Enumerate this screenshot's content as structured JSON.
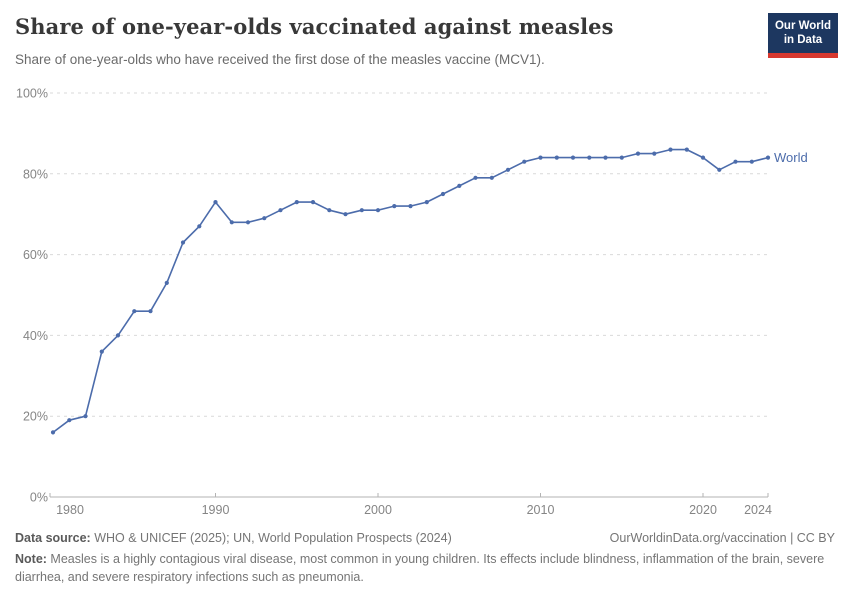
{
  "header": {
    "title": "Share of one-year-olds vaccinated against measles",
    "subtitle": "Share of one-year-olds who have received the first dose of the measles vaccine (MCV1).",
    "logo": {
      "line1": "Our World",
      "line2": "in Data"
    }
  },
  "chart_data": {
    "type": "line",
    "title": "Share of one-year-olds vaccinated against measles",
    "xlabel": "",
    "ylabel": "",
    "xlim": [
      1980,
      2024
    ],
    "ylim": [
      0,
      100
    ],
    "grid": "horizontal-dashed",
    "legend_position": "end-of-line-label",
    "x_ticks": [
      1980,
      1990,
      2000,
      2010,
      2020,
      2024
    ],
    "y_ticks": [
      {
        "value": 0,
        "label": "0%"
      },
      {
        "value": 20,
        "label": "20%"
      },
      {
        "value": 40,
        "label": "40%"
      },
      {
        "value": 60,
        "label": "60%"
      },
      {
        "value": 80,
        "label": "80%"
      },
      {
        "value": 100,
        "label": "100%"
      }
    ],
    "series": [
      {
        "name": "World",
        "color": "#4c6cab",
        "x": [
          1980,
          1981,
          1982,
          1983,
          1984,
          1985,
          1986,
          1987,
          1988,
          1989,
          1990,
          1991,
          1992,
          1993,
          1994,
          1995,
          1996,
          1997,
          1998,
          1999,
          2000,
          2001,
          2002,
          2003,
          2004,
          2005,
          2006,
          2007,
          2008,
          2009,
          2010,
          2011,
          2012,
          2013,
          2014,
          2015,
          2016,
          2017,
          2018,
          2019,
          2020,
          2021,
          2022,
          2023,
          2024
        ],
        "values": [
          16,
          19,
          20,
          36,
          40,
          46,
          46,
          53,
          63,
          67,
          73,
          68,
          68,
          69,
          71,
          73,
          73,
          71,
          70,
          71,
          71,
          72,
          72,
          73,
          75,
          77,
          79,
          79,
          81,
          83,
          84,
          84,
          84,
          84,
          84,
          84,
          85,
          85,
          86,
          86,
          84,
          81,
          83,
          83,
          84
        ]
      }
    ]
  },
  "footer": {
    "datasource_label": "Data source:",
    "datasource_text": " WHO & UNICEF (2025); UN, World Population Prospects (2024)",
    "attribution": "OurWorldinData.org/vaccination | CC BY",
    "note_label": "Note:",
    "note_text": " Measles is a highly contagious viral disease, most common in young children. Its effects include blindness, inflammation of the brain, severe diarrhea, and severe respiratory infections such as pneumonia."
  },
  "colors": {
    "line": "#4c6cab",
    "grid": "#d9d9d9",
    "axis": "#b3b3b3",
    "axis_text": "#858585",
    "logo_bg": "#1d3760",
    "logo_bar": "#d7382f"
  }
}
